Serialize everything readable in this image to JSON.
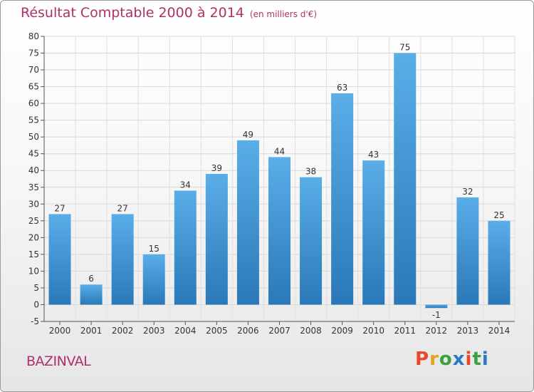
{
  "header": {
    "title": "Résultat Comptable 2000 à 2014",
    "subtitle": "(en milliers d'€)"
  },
  "footer": {
    "town": "BAZINVAL",
    "logo_text": "Proxiti"
  },
  "colors": {
    "title": "#b0306a",
    "bar_top": "#5aaee8",
    "bar_bottom": "#2a78b8",
    "logo": [
      "#e8492a",
      "#e8a020",
      "#3aa040",
      "#2a78c8",
      "#e8492a",
      "#3aa040",
      "#2a78c8"
    ]
  },
  "chart_data": {
    "type": "bar",
    "categories": [
      "2000",
      "2001",
      "2002",
      "2003",
      "2004",
      "2005",
      "2006",
      "2007",
      "2008",
      "2009",
      "2010",
      "2011",
      "2012",
      "2013",
      "2014"
    ],
    "values": [
      27,
      6,
      27,
      15,
      34,
      39,
      49,
      44,
      38,
      63,
      43,
      75,
      -1,
      32,
      25
    ],
    "ylim": [
      -5,
      80
    ],
    "yticks": [
      -5,
      0,
      5,
      10,
      15,
      20,
      25,
      30,
      35,
      40,
      45,
      50,
      55,
      60,
      65,
      70,
      75,
      80
    ],
    "grid": true,
    "title": "Résultat Comptable 2000 à 2014",
    "xlabel": "",
    "ylabel": ""
  }
}
